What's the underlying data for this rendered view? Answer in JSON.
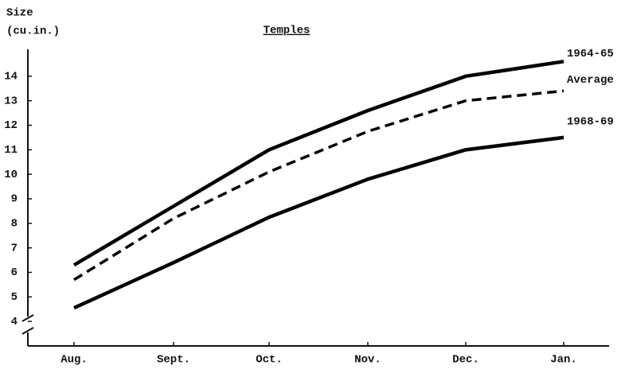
{
  "chart_data": {
    "type": "line",
    "title": "Temples",
    "y_label": [
      "Size",
      "(cu.in.)"
    ],
    "categories": [
      "Aug.",
      "Sept.",
      "Oct.",
      "Nov.",
      "Dec.",
      "Jan."
    ],
    "series": [
      {
        "name": "1964-65",
        "color": "#000000",
        "dashed": false,
        "values": [
          6.3,
          8.7,
          11.0,
          12.6,
          14.0,
          14.6
        ]
      },
      {
        "name": "Average",
        "color": "#000000",
        "dashed": true,
        "values": [
          5.7,
          8.2,
          10.1,
          11.75,
          13.0,
          13.4
        ]
      },
      {
        "name": "1968-69",
        "color": "#000000",
        "dashed": false,
        "values": [
          4.55,
          6.4,
          8.25,
          9.8,
          11.0,
          11.5
        ]
      }
    ],
    "ylim": [
      3,
      15
    ],
    "yticks": [
      4,
      5,
      6,
      7,
      8,
      9,
      10,
      11,
      12,
      13,
      14
    ],
    "grid": false
  }
}
